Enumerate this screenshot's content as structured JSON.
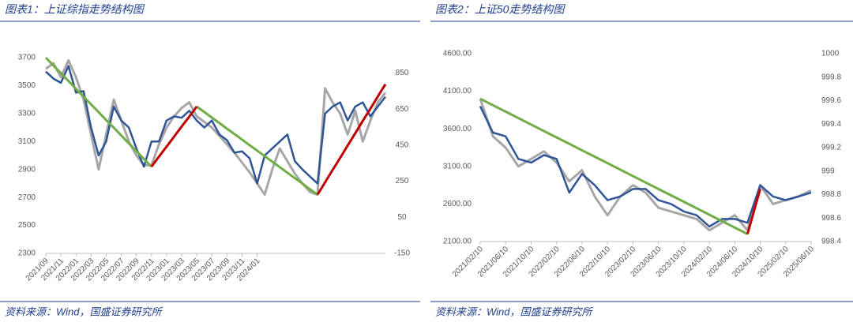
{
  "chart_data": [
    {
      "type": "line",
      "title": "图表1：上证综指走势结构图",
      "source": "资料来源：Wind，国盛证券研究所",
      "categories": [
        "2021/09",
        null,
        "2021/11",
        null,
        "2022/01",
        null,
        "2022/03",
        null,
        "2022/05",
        null,
        "2022/07",
        null,
        "2022/09",
        null,
        "2022/11",
        null,
        "2023/01",
        null,
        "2023/03",
        null,
        "2023/05",
        null,
        "2023/07",
        null,
        "2023/09",
        null,
        "2023/11",
        null,
        "2024/01",
        null,
        null,
        null,
        null,
        null,
        null,
        null,
        null,
        null,
        null,
        null,
        null,
        null,
        null,
        null,
        null,
        null
      ],
      "series": [
        {
          "color": "#a6a6a6",
          "values": [
            3620,
            3660,
            3560,
            3680,
            3560,
            3400,
            3150,
            2900,
            3150,
            3400,
            3250,
            3100,
            3000,
            2930,
            2930,
            3080,
            3200,
            3280,
            3340,
            3380,
            3280,
            3240,
            3200,
            3140,
            3080,
            3020,
            2950,
            2880,
            2800,
            2720,
            2900,
            3050,
            2960,
            2870,
            2800,
            2740,
            2720,
            3480,
            3380,
            3300,
            3150,
            3320,
            3100,
            3250,
            3380,
            3450
          ]
        },
        {
          "color": "#2f5597",
          "values": [
            3600,
            3550,
            3520,
            3640,
            3450,
            3460,
            3200,
            3000,
            3100,
            3350,
            3250,
            3200,
            3050,
            2920,
            3100,
            3100,
            3250,
            3280,
            3270,
            3320,
            3250,
            3200,
            3250,
            3150,
            3110,
            3020,
            3030,
            2980,
            2800,
            3000,
            3050,
            3100,
            3150,
            2960,
            2900,
            2850,
            2800,
            3300,
            3350,
            3380,
            3250,
            3350,
            3380,
            3280,
            3350,
            3420
          ]
        },
        {
          "color": "#70ad47",
          "values": [
            3700,
            3644,
            3589,
            3533,
            3477,
            3421,
            3366,
            3310,
            3254,
            3199,
            3143,
            3087,
            3031,
            2976,
            2920,
            null,
            null,
            null,
            null,
            null,
            3350,
            3311,
            3271,
            3232,
            3192,
            3153,
            3114,
            3074,
            3035,
            2996,
            2956,
            2917,
            2877,
            2838,
            2799,
            2759,
            2720,
            null,
            null,
            null,
            null,
            null,
            null,
            null,
            null,
            null
          ]
        },
        {
          "color": "#c00000",
          "values": [
            null,
            null,
            null,
            null,
            null,
            null,
            null,
            null,
            null,
            null,
            null,
            null,
            null,
            null,
            2920,
            2992,
            3063,
            3135,
            3207,
            3278,
            3350,
            null,
            null,
            null,
            null,
            null,
            null,
            null,
            null,
            null,
            null,
            null,
            null,
            null,
            null,
            null,
            2720,
            2808,
            2896,
            2983,
            3071,
            3159,
            3247,
            3334,
            3422,
            3510
          ]
        }
      ],
      "ylim": [
        2300,
        3700
      ],
      "yticks": [
        2300,
        2500,
        2700,
        2900,
        3100,
        3300,
        3500,
        3700
      ],
      "y2lim": [
        -150,
        935
      ],
      "y2ticks": [
        -150,
        50,
        250,
        450,
        650,
        850
      ]
    },
    {
      "type": "line",
      "title": "图表2：上证50走势结构图",
      "source": "资料来源：Wind，国盛证券研究所",
      "categories": [
        "2021/02/10",
        null,
        "2021/06/10",
        null,
        "2021/10/10",
        null,
        "2022/02/10",
        null,
        "2022/06/10",
        null,
        "2022/10/10",
        null,
        "2023/02/10",
        null,
        "2023/06/10",
        null,
        "2023/10/10",
        null,
        "2024/02/10",
        null,
        "2024/06/10",
        null,
        "2024/10/10",
        null,
        "2025/02/10",
        null,
        "2025/06/10"
      ],
      "series": [
        {
          "color": "#a6a6a6",
          "values": [
            4000,
            3500,
            3350,
            3100,
            3200,
            3300,
            3150,
            2900,
            3050,
            2700,
            2450,
            2700,
            2850,
            2750,
            2550,
            2500,
            2450,
            2400,
            2250,
            2350,
            2450,
            2250,
            2850,
            2600,
            2650,
            2700,
            2780
          ]
        },
        {
          "color": "#2f5597",
          "values": [
            3900,
            3550,
            3500,
            3200,
            3150,
            3250,
            3200,
            2750,
            3000,
            2850,
            2650,
            2700,
            2800,
            2800,
            2650,
            2600,
            2500,
            2450,
            2300,
            2400,
            2400,
            2350,
            2850,
            2700,
            2650,
            2700,
            2750
          ]
        },
        {
          "color": "#70ad47",
          "values": [
            4000,
            3914,
            3829,
            3743,
            3657,
            3571,
            3486,
            3400,
            3314,
            3229,
            3143,
            3057,
            2971,
            2886,
            2800,
            2714,
            2629,
            2543,
            2457,
            2371,
            2286,
            2200,
            null,
            null,
            null,
            null,
            null
          ]
        },
        {
          "color": "#c00000",
          "values": [
            null,
            null,
            null,
            null,
            null,
            null,
            null,
            null,
            null,
            null,
            null,
            null,
            null,
            null,
            null,
            null,
            null,
            null,
            null,
            null,
            null,
            2200,
            2800,
            null,
            null,
            null,
            null
          ]
        }
      ],
      "ylim": [
        2100,
        4600
      ],
      "yticks": [
        {
          "value": 2100,
          "label": "2100.00"
        },
        {
          "value": 2600,
          "label": "2600.00"
        },
        {
          "value": 3100,
          "label": "3100.00"
        },
        {
          "value": 3600,
          "label": "3600.00"
        },
        {
          "value": 4100,
          "label": "4100.00"
        },
        {
          "value": 4600,
          "label": "4600.00"
        }
      ],
      "y2lim": [
        998.4,
        1000
      ],
      "y2ticks": [
        998.4,
        998.6,
        998.8,
        999,
        999.2,
        999.4,
        999.6,
        999.8,
        1000
      ]
    }
  ]
}
